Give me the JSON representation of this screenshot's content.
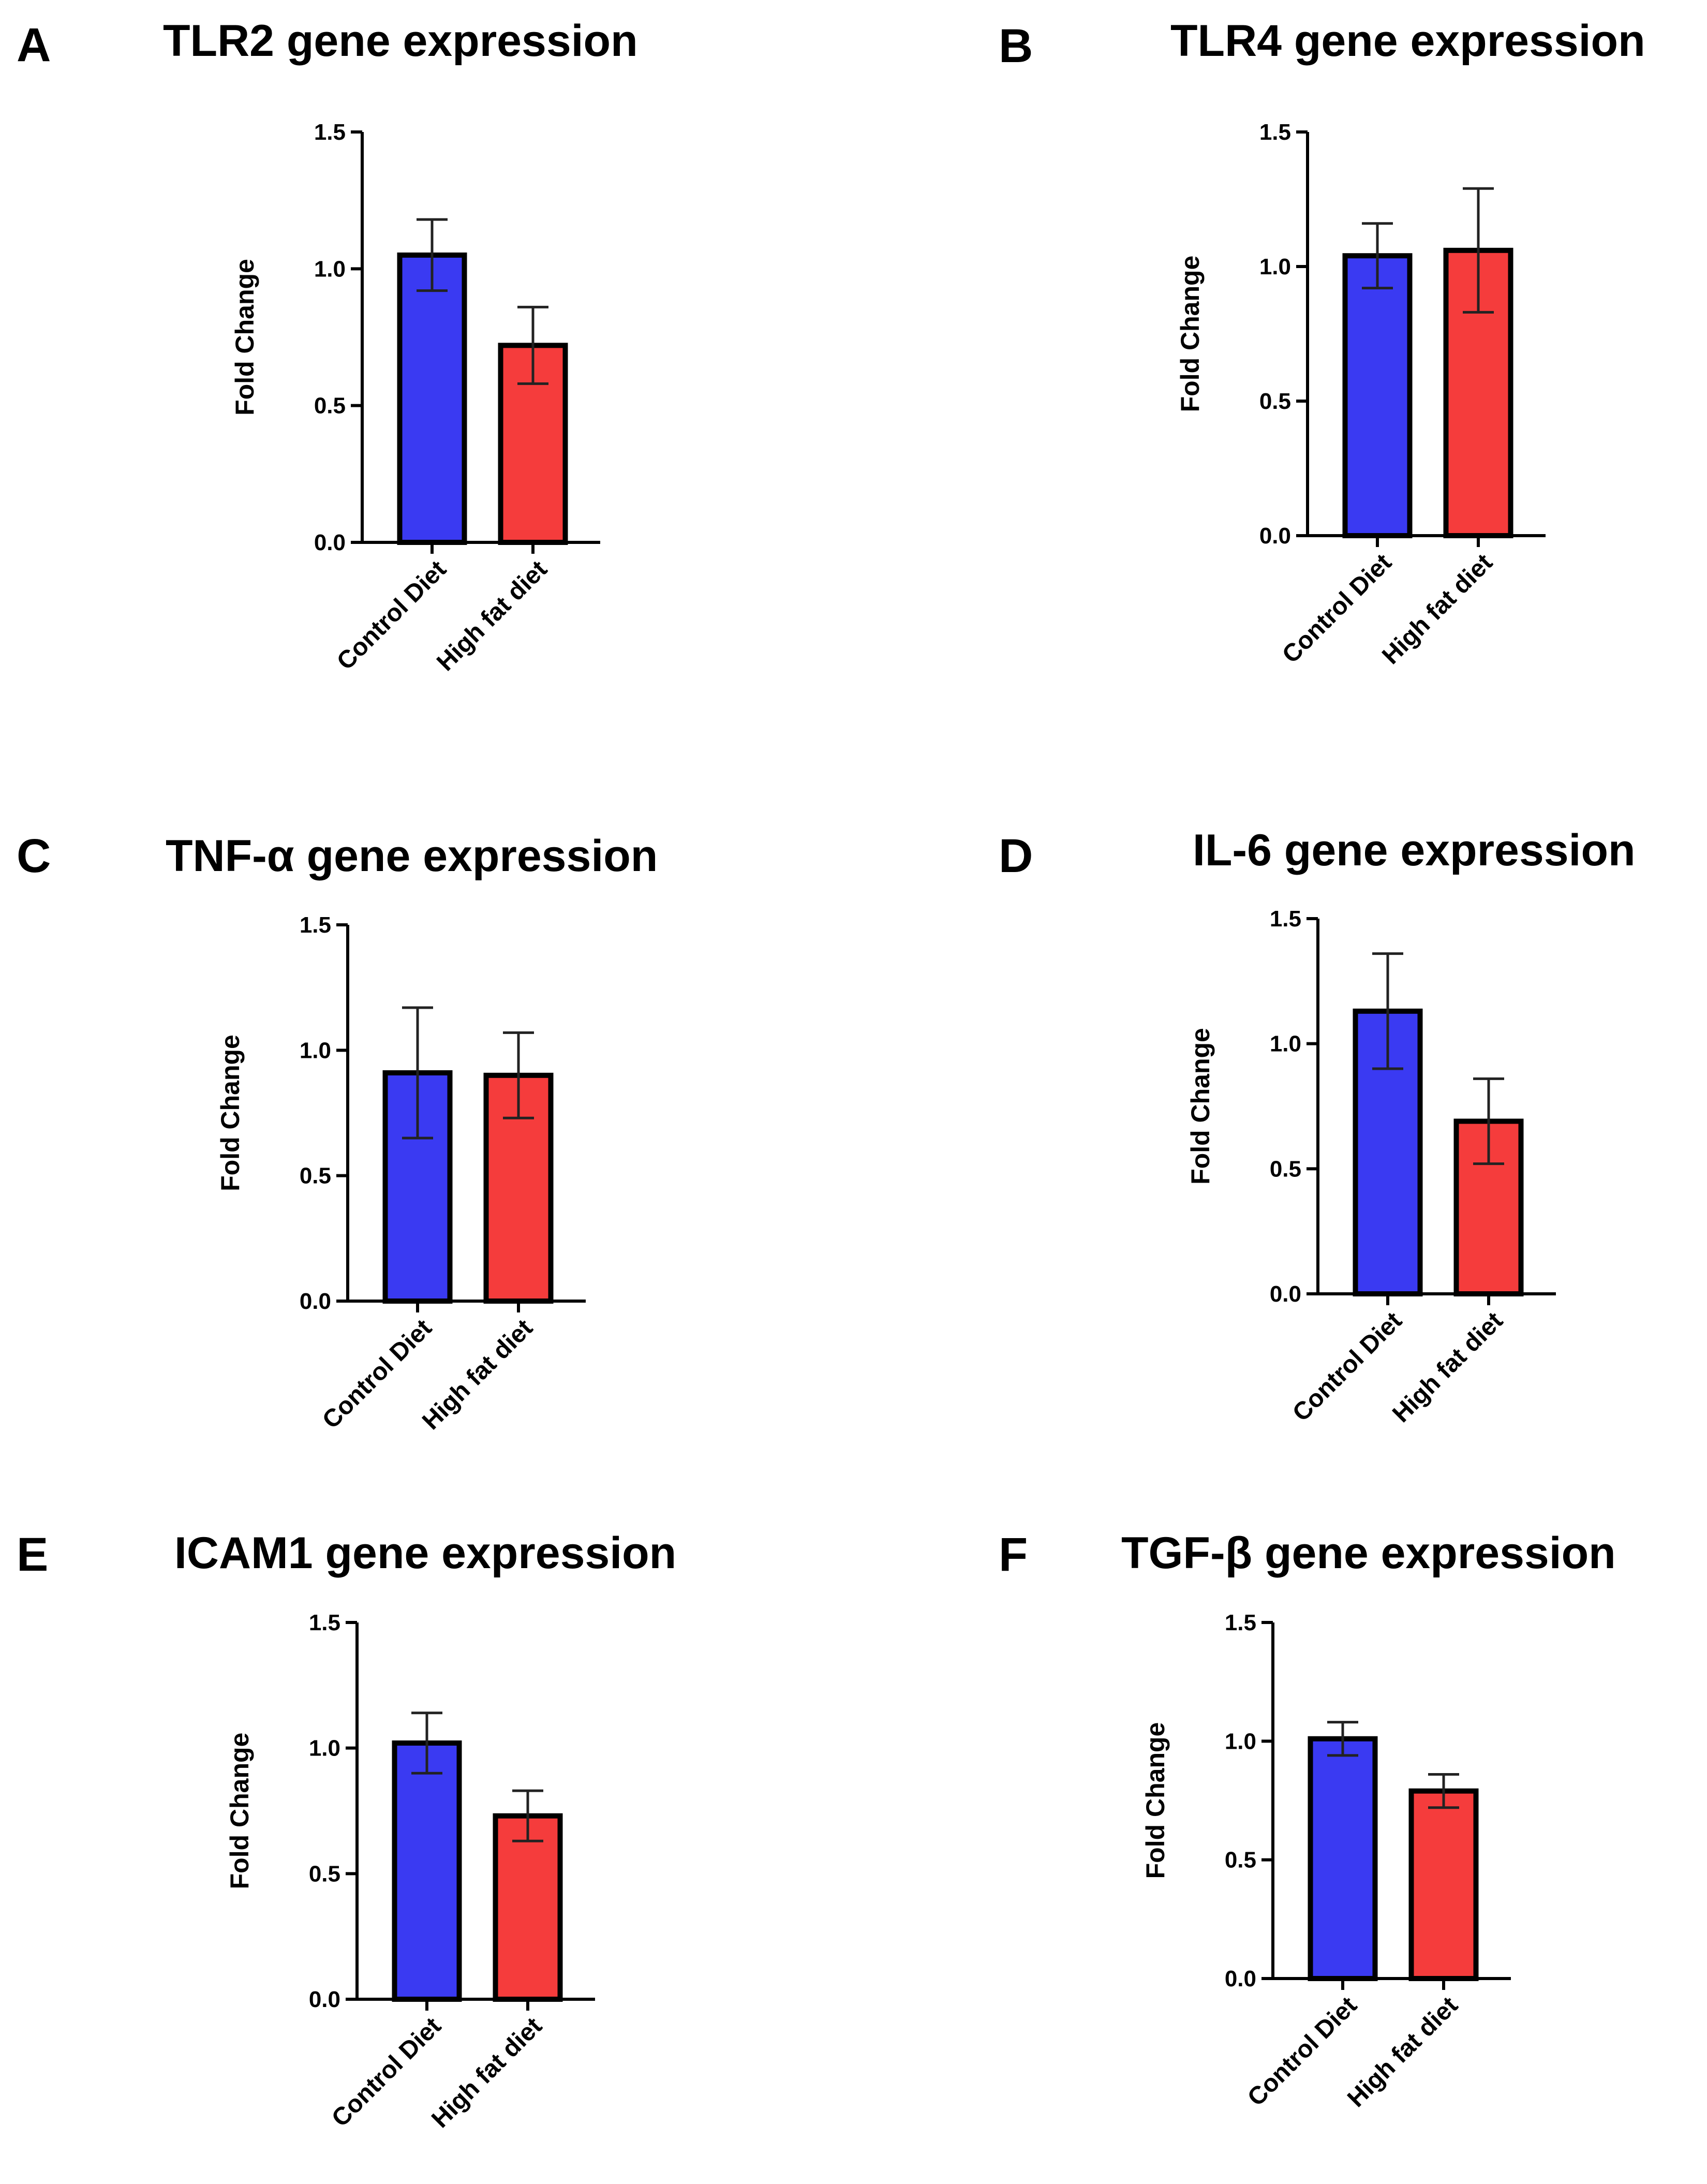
{
  "chart_data": [
    {
      "letter": "A",
      "title": "TLR2 gene expression",
      "type": "bar",
      "ylabel": "Fold Change",
      "ylim": [
        0,
        1.5
      ],
      "yticks": [
        "0.0",
        "0.5",
        "1.0",
        "1.5"
      ],
      "categories": [
        "Control Diet",
        "High fat diet"
      ],
      "values": [
        1.05,
        0.72
      ],
      "errors": [
        0.13,
        0.14
      ],
      "colors": [
        "#3a3af2",
        "#f53c3c"
      ]
    },
    {
      "letter": "B",
      "title": "TLR4 gene expression",
      "type": "bar",
      "ylabel": "Fold Change",
      "ylim": [
        0,
        1.5
      ],
      "yticks": [
        "0.0",
        "0.5",
        "1.0",
        "1.5"
      ],
      "categories": [
        "Control Diet",
        "High fat diet"
      ],
      "values": [
        1.04,
        1.06
      ],
      "errors": [
        0.12,
        0.23
      ],
      "colors": [
        "#3a3af2",
        "#f53c3c"
      ]
    },
    {
      "letter": "C",
      "title": "TNF-α gene expression",
      "type": "bar",
      "ylabel": "Fold Change",
      "ylim": [
        0,
        1.5
      ],
      "yticks": [
        "0.0",
        "0.5",
        "1.0",
        "1.5"
      ],
      "categories": [
        "Control Diet",
        "High fat diet"
      ],
      "values": [
        0.91,
        0.9
      ],
      "errors": [
        0.26,
        0.17
      ],
      "colors": [
        "#3a3af2",
        "#f53c3c"
      ]
    },
    {
      "letter": "D",
      "title": "IL-6 gene expression",
      "type": "bar",
      "ylabel": "Fold Change",
      "ylim": [
        0,
        1.5
      ],
      "yticks": [
        "0.0",
        "0.5",
        "1.0",
        "1.5"
      ],
      "categories": [
        "Control Diet",
        "High fat diet"
      ],
      "values": [
        1.13,
        0.69
      ],
      "errors": [
        0.23,
        0.17
      ],
      "colors": [
        "#3a3af2",
        "#f53c3c"
      ]
    },
    {
      "letter": "E",
      "title": "ICAM1 gene expression",
      "type": "bar",
      "ylabel": "Fold Change",
      "ylim": [
        0,
        1.5
      ],
      "yticks": [
        "0.0",
        "0.5",
        "1.0",
        "1.5"
      ],
      "categories": [
        "Control Diet",
        "High fat diet"
      ],
      "values": [
        1.02,
        0.73
      ],
      "errors": [
        0.12,
        0.1
      ],
      "colors": [
        "#3a3af2",
        "#f53c3c"
      ]
    },
    {
      "letter": "F",
      "title": "TGF-β gene expression",
      "type": "bar",
      "ylabel": "Fold Change",
      "ylim": [
        0,
        1.5
      ],
      "yticks": [
        "0.0",
        "0.5",
        "1.0",
        "1.5"
      ],
      "categories": [
        "Control Diet",
        "High fat diet"
      ],
      "values": [
        1.01,
        0.79
      ],
      "errors": [
        0.07,
        0.07
      ],
      "colors": [
        "#3a3af2",
        "#f53c3c"
      ]
    }
  ]
}
